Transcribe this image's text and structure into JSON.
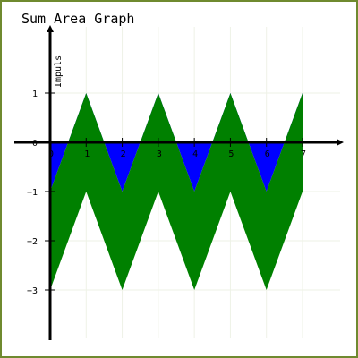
{
  "chart_data": {
    "type": "area",
    "title": "Sum Area Graph",
    "ylabel": "Impuls",
    "xlabel": "",
    "xlim": [
      0,
      7
    ],
    "ylim": [
      -4,
      2
    ],
    "x_ticks": [
      0,
      1,
      2,
      3,
      4,
      5,
      6,
      7
    ],
    "y_ticks": [
      -3,
      -2,
      -1,
      0,
      1
    ],
    "grid": true,
    "series": [
      {
        "color": "#0000ff",
        "x": [
          0,
          1,
          2,
          3,
          4,
          5,
          6,
          7
        ],
        "values": [
          -1,
          1,
          -1,
          1,
          -1,
          1,
          -1,
          1
        ]
      },
      {
        "color": "#008000",
        "x": [
          0,
          1,
          2,
          3,
          4,
          5,
          6,
          7
        ],
        "values": [
          -2,
          -2,
          -2,
          -2,
          -2,
          -2,
          -2,
          -2
        ]
      }
    ]
  }
}
